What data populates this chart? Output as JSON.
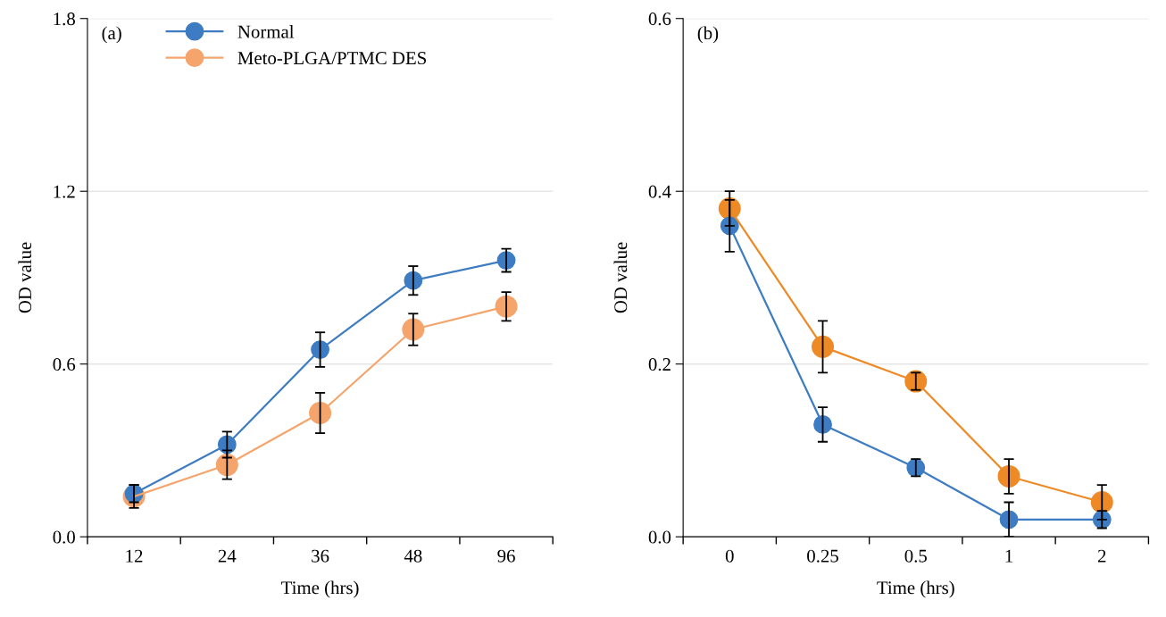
{
  "chart_data": [
    {
      "type": "line",
      "title": "(a)",
      "xlabel": "Time (hrs)",
      "ylabel": "OD value",
      "categories": [
        "12",
        "24",
        "36",
        "48",
        "96"
      ],
      "ylim": [
        0,
        1.8
      ],
      "yticks": [
        {
          "value": 0,
          "label": "0.0"
        },
        {
          "value": 0.6,
          "label": "0.6"
        },
        {
          "value": 1.2,
          "label": "1.2"
        },
        {
          "value": 1.8,
          "label": "1.8"
        }
      ],
      "grid": "y",
      "legend": "top",
      "marker": "circle",
      "line_style": "solid",
      "series": [
        {
          "name": "Normal",
          "color": "#3d7cc2",
          "values": [
            0.15,
            0.32,
            0.65,
            0.89,
            0.96
          ],
          "errors": [
            0.03,
            0.045,
            0.06,
            0.05,
            0.04
          ]
        },
        {
          "name": "Meto-PLGA/PTMC DES",
          "color": "#f5a46c",
          "values": [
            0.14,
            0.25,
            0.43,
            0.72,
            0.8
          ],
          "errors": [
            0.04,
            0.05,
            0.07,
            0.055,
            0.05
          ]
        }
      ]
    },
    {
      "type": "line",
      "title": "(b)",
      "xlabel": "Time (hrs)",
      "ylabel": "OD value",
      "categories": [
        "0",
        "0.25",
        "0.5",
        "1",
        "2"
      ],
      "ylim": [
        0,
        0.6
      ],
      "yticks": [
        {
          "value": 0,
          "label": "0.0"
        },
        {
          "value": 0.2,
          "label": "0.2"
        },
        {
          "value": 0.4,
          "label": "0.4"
        },
        {
          "value": 0.6,
          "label": "0.6"
        }
      ],
      "grid": "y",
      "marker": "circle",
      "line_style": "solid",
      "series": [
        {
          "color": "#3d7cc2",
          "values": [
            0.36,
            0.13,
            0.08,
            0.02,
            0.02
          ],
          "errors": [
            0.03,
            0.02,
            0.01,
            0.02,
            0.01
          ]
        },
        {
          "color": "#ee8a26",
          "values": [
            0.38,
            0.22,
            0.18,
            0.07,
            0.04
          ],
          "errors": [
            0.02,
            0.03,
            0.01,
            0.02,
            0.02
          ]
        }
      ]
    }
  ]
}
